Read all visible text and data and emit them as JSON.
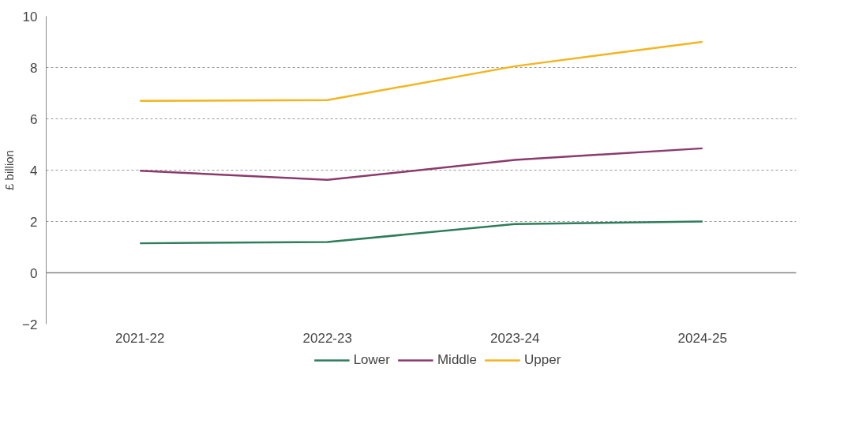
{
  "chart_data": {
    "type": "line",
    "ylabel": "£ billion",
    "categories": [
      "2021-22",
      "2022-23",
      "2023-24",
      "2024-25"
    ],
    "series": [
      {
        "name": "Lower",
        "color": "#2e7d5b",
        "values": [
          1.15,
          1.2,
          1.9,
          2.0
        ]
      },
      {
        "name": "Middle",
        "color": "#8b3a6b",
        "values": [
          3.98,
          3.62,
          4.4,
          4.85
        ]
      },
      {
        "name": "Upper",
        "color": "#f2b51e",
        "values": [
          6.7,
          6.73,
          8.05,
          9.0
        ]
      }
    ],
    "ylim": [
      -2,
      10
    ],
    "yticks": [
      -2,
      0,
      2,
      4,
      6,
      8,
      10
    ],
    "grid": "y",
    "legend": "bottom",
    "marker": "none",
    "line_style": "solid"
  }
}
